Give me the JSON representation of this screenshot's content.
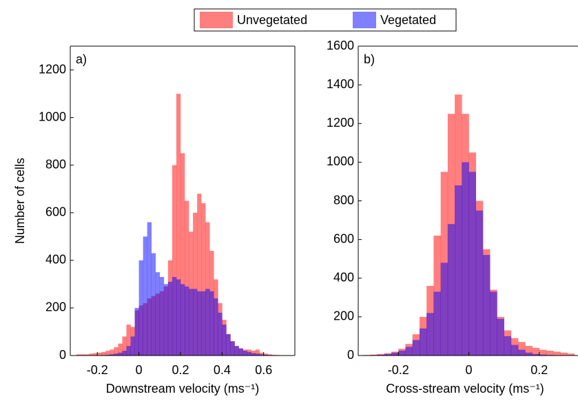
{
  "legend": {
    "entries": [
      {
        "name": "Unvegetated",
        "color": "rgba(255,0,0,0.5)"
      },
      {
        "name": "Vegetated",
        "color": "rgba(0,0,255,0.5)"
      }
    ]
  },
  "chart_data": [
    {
      "type": "histogram",
      "panel_label": "a)",
      "xlabel": "Downstream velocity (ms⁻¹)",
      "ylabel": "Number of cells",
      "xlim": [
        -0.33,
        0.75
      ],
      "ylim": [
        0,
        1300
      ],
      "xticks": [
        -0.2,
        0,
        0.2,
        0.4,
        0.6
      ],
      "yticks": [
        0,
        200,
        400,
        600,
        800,
        1000,
        1200
      ],
      "bins": [
        -0.3,
        -0.28,
        -0.26,
        -0.24,
        -0.22,
        -0.2,
        -0.18,
        -0.16,
        -0.14,
        -0.12,
        -0.1,
        -0.08,
        -0.06,
        -0.04,
        -0.02,
        0,
        0.02,
        0.04,
        0.06,
        0.08,
        0.1,
        0.12,
        0.14,
        0.16,
        0.18,
        0.2,
        0.22,
        0.24,
        0.26,
        0.28,
        0.3,
        0.32,
        0.34,
        0.36,
        0.38,
        0.4,
        0.42,
        0.44,
        0.46,
        0.48,
        0.5,
        0.52,
        0.54,
        0.56,
        0.58,
        0.6,
        0.62,
        0.64,
        0.66,
        0.68,
        0.7
      ],
      "series": [
        {
          "color": "rgba(255,0,0,0.5)",
          "values": [
            5,
            5,
            5,
            8,
            10,
            12,
            15,
            20,
            25,
            35,
            50,
            80,
            130,
            120,
            190,
            210,
            220,
            240,
            250,
            260,
            270,
            290,
            400,
            800,
            1100,
            850,
            650,
            520,
            600,
            680,
            640,
            560,
            440,
            320,
            220,
            150,
            90,
            60,
            40,
            30,
            25,
            25,
            20,
            25,
            12,
            8,
            5,
            3,
            2,
            1
          ]
        },
        {
          "color": "rgba(0,0,255,0.5)",
          "values": [
            0,
            0,
            0,
            0,
            1,
            1,
            2,
            3,
            5,
            8,
            12,
            20,
            40,
            80,
            200,
            400,
            500,
            560,
            430,
            350,
            330,
            300,
            310,
            330,
            320,
            300,
            290,
            280,
            280,
            270,
            270,
            280,
            270,
            240,
            180,
            130,
            90,
            60,
            40,
            30,
            20,
            15,
            10,
            8,
            5,
            3,
            2,
            1,
            1,
            0
          ]
        }
      ]
    },
    {
      "type": "histogram",
      "panel_label": "b)",
      "xlabel": "Cross-stream velocity (ms⁻¹)",
      "xlim": [
        -0.314,
        0.31
      ],
      "ylim": [
        0,
        1600
      ],
      "xticks": [
        -0.2,
        0,
        0.2
      ],
      "yticks": [
        0,
        200,
        400,
        600,
        800,
        1000,
        1200,
        1400,
        1600
      ],
      "bins": [
        -0.3,
        -0.28,
        -0.26,
        -0.24,
        -0.22,
        -0.2,
        -0.18,
        -0.16,
        -0.14,
        -0.12,
        -0.1,
        -0.08,
        -0.06,
        -0.04,
        -0.02,
        0,
        0.02,
        0.04,
        0.06,
        0.08,
        0.1,
        0.12,
        0.14,
        0.16,
        0.18,
        0.2,
        0.22,
        0.24,
        0.26,
        0.28,
        0.3
      ],
      "series": [
        {
          "color": "rgba(255,0,0,0.5)",
          "values": [
            3,
            5,
            8,
            12,
            20,
            35,
            60,
            110,
            200,
            360,
            620,
            950,
            1250,
            1350,
            1250,
            1050,
            800,
            550,
            340,
            200,
            130,
            90,
            70,
            50,
            40,
            30,
            25,
            20,
            15,
            10
          ]
        },
        {
          "color": "rgba(0,0,255,0.5)",
          "values": [
            1,
            2,
            4,
            8,
            15,
            25,
            45,
            80,
            140,
            220,
            330,
            480,
            680,
            880,
            1000,
            950,
            750,
            520,
            330,
            190,
            100,
            55,
            30,
            15,
            8,
            5,
            3,
            2,
            1,
            1
          ]
        }
      ]
    }
  ]
}
